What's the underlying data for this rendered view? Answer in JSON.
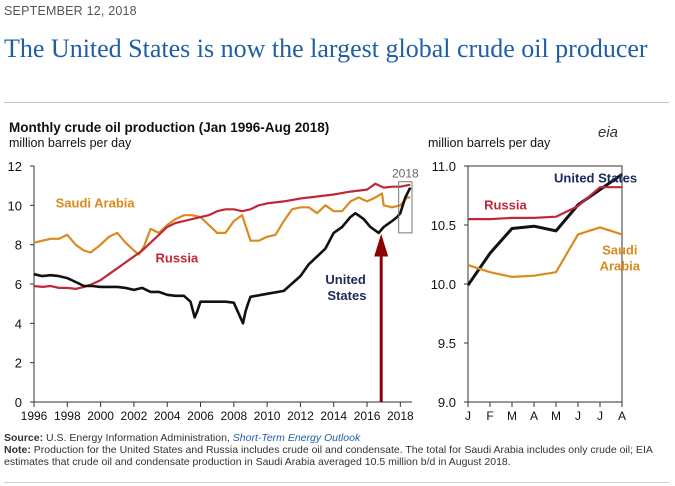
{
  "header": {
    "date": "SEPTEMBER 12, 2018",
    "title": "The United States is now the largest global crude oil producer"
  },
  "logo": {
    "text": "eia"
  },
  "footer": {
    "source_label": "Source:",
    "source_text": "U.S. Energy Information Administration,",
    "source_link": "Short-Term Energy Outlook",
    "note_label": "Note:",
    "note_text": "Production for the United States and Russia includes crude oil and condensate. The total for Saudi Arabia includes only crude oil; EIA estimates that crude oil and condensate production in Saudi Arabia averaged 10.5 million b/d in August 2018."
  },
  "colors": {
    "united_states": "#111111",
    "russia": "#c0283a",
    "saudi_arabia": "#d98b1e",
    "arrow": "#8b0000",
    "highlight_box": "#777777"
  },
  "chart_data": [
    {
      "type": "line",
      "title": "Monthly crude oil production (Jan 1996-Aug 2018)",
      "ylabel": "million barrels per day",
      "xlim": [
        1996,
        2018.7
      ],
      "ylim": [
        0,
        12
      ],
      "yticks": [
        0,
        2,
        4,
        6,
        8,
        10,
        12
      ],
      "xticks": [
        1996,
        1998,
        2000,
        2002,
        2004,
        2006,
        2008,
        2010,
        2012,
        2014,
        2016,
        2018
      ],
      "grid": false,
      "highlight": {
        "label": "2018",
        "x_range": [
          2017.9,
          2018.7
        ],
        "y_range": [
          8.6,
          11.2
        ]
      },
      "annotation": "arrow marking the point where U.S. production overtakes the others",
      "series": [
        {
          "name": "Saudi Arabia",
          "color": "#d98b1e",
          "label_position": [
            1997.3,
            9.9
          ],
          "x": [
            1996,
            1996.5,
            1997,
            1997.5,
            1998,
            1998.5,
            1999,
            1999.4,
            2000,
            2000.5,
            2001,
            2001.5,
            2002,
            2002.3,
            2002.6,
            2003,
            2003.5,
            2004,
            2004.5,
            2005,
            2005.5,
            2006,
            2006.5,
            2007,
            2007.5,
            2008,
            2008.5,
            2009,
            2009.5,
            2010,
            2010.5,
            2011,
            2011.5,
            2012,
            2012.5,
            2013,
            2013.5,
            2014,
            2014.5,
            2015,
            2015.5,
            2016,
            2016.5,
            2016.9,
            2017,
            2017.5,
            2018,
            2018.4,
            2018.6
          ],
          "y": [
            8.1,
            8.2,
            8.3,
            8.3,
            8.5,
            8.0,
            7.7,
            7.6,
            8.0,
            8.4,
            8.6,
            8.1,
            7.7,
            7.5,
            7.9,
            8.8,
            8.6,
            9.0,
            9.3,
            9.5,
            9.5,
            9.4,
            9.0,
            8.6,
            8.6,
            9.2,
            9.5,
            8.2,
            8.2,
            8.4,
            8.5,
            9.2,
            9.8,
            9.9,
            9.9,
            9.6,
            10.0,
            9.7,
            9.7,
            10.2,
            10.4,
            10.2,
            10.4,
            10.6,
            10.0,
            9.9,
            10.0,
            10.4,
            10.4
          ]
        },
        {
          "name": "Russia",
          "color": "#c0283a",
          "label_position": [
            2003.3,
            7.1
          ],
          "x": [
            1996,
            1996.5,
            1997,
            1997.5,
            1998,
            1998.5,
            1999,
            1999.5,
            2000,
            2000.5,
            2001,
            2001.5,
            2002,
            2002.5,
            2003,
            2003.5,
            2004,
            2004.5,
            2005,
            2005.5,
            2006,
            2006.5,
            2007,
            2007.5,
            2008,
            2008.5,
            2009,
            2009.5,
            2010,
            2011,
            2012,
            2013,
            2014,
            2015,
            2016,
            2016.5,
            2017,
            2017.5,
            2018,
            2018.6
          ],
          "y": [
            5.9,
            5.85,
            5.9,
            5.8,
            5.8,
            5.75,
            5.85,
            6.0,
            6.2,
            6.5,
            6.8,
            7.1,
            7.4,
            7.7,
            8.1,
            8.5,
            8.9,
            9.1,
            9.2,
            9.3,
            9.4,
            9.5,
            9.7,
            9.8,
            9.8,
            9.7,
            9.8,
            10.0,
            10.1,
            10.2,
            10.35,
            10.45,
            10.55,
            10.7,
            10.8,
            11.1,
            10.9,
            10.95,
            10.95,
            11.05
          ]
        },
        {
          "name": "United States",
          "color": "#111111",
          "label_position": [
            2013.5,
            6.0
          ],
          "x": [
            1996,
            1996.5,
            1997,
            1997.5,
            1998,
            1998.5,
            1999,
            1999.5,
            2000,
            2000.5,
            2001,
            2001.5,
            2002,
            2002.5,
            2003,
            2003.5,
            2004,
            2004.5,
            2005,
            2005.4,
            2005.65,
            2005.8,
            2006,
            2006.5,
            2007,
            2007.5,
            2008,
            2008.55,
            2008.7,
            2008.85,
            2009,
            2010,
            2011,
            2012,
            2012.5,
            2013,
            2013.5,
            2014,
            2014.5,
            2015,
            2015.3,
            2015.8,
            2016.2,
            2016.7,
            2017,
            2017.5,
            2017.8,
            2018,
            2018.3,
            2018.6
          ],
          "y": [
            6.5,
            6.4,
            6.45,
            6.4,
            6.3,
            6.1,
            5.9,
            5.9,
            5.85,
            5.85,
            5.85,
            5.8,
            5.7,
            5.8,
            5.6,
            5.6,
            5.45,
            5.4,
            5.4,
            5.1,
            4.3,
            4.6,
            5.1,
            5.1,
            5.1,
            5.1,
            5.05,
            4.0,
            4.6,
            5.0,
            5.35,
            5.5,
            5.65,
            6.4,
            7.0,
            7.4,
            7.8,
            8.6,
            8.9,
            9.4,
            9.6,
            9.3,
            8.9,
            8.6,
            8.9,
            9.2,
            9.4,
            9.6,
            10.4,
            10.9
          ]
        }
      ]
    },
    {
      "type": "line",
      "ylabel": "million barrels per day",
      "categories": [
        "J",
        "F",
        "M",
        "A",
        "M",
        "J",
        "J",
        "A"
      ],
      "ylim": [
        9.0,
        11.0
      ],
      "yticks": [
        9.0,
        9.5,
        10.0,
        10.5,
        11.0
      ],
      "grid": false,
      "series": [
        {
          "name": "United States",
          "color": "#111111",
          "label_position": [
            5.8,
            10.86
          ],
          "values": [
            9.99,
            10.26,
            10.47,
            10.49,
            10.45,
            10.67,
            10.8,
            10.93
          ]
        },
        {
          "name": "Russia",
          "color": "#c0283a",
          "label_position": [
            1.7,
            10.63
          ],
          "values": [
            10.55,
            10.55,
            10.56,
            10.56,
            10.57,
            10.66,
            10.82,
            10.82
          ]
        },
        {
          "name": "Saudi Arabia",
          "color": "#d98b1e",
          "label_position": [
            6.9,
            10.25
          ],
          "values": [
            10.16,
            10.1,
            10.06,
            10.07,
            10.1,
            10.42,
            10.48,
            10.42
          ]
        }
      ]
    }
  ]
}
